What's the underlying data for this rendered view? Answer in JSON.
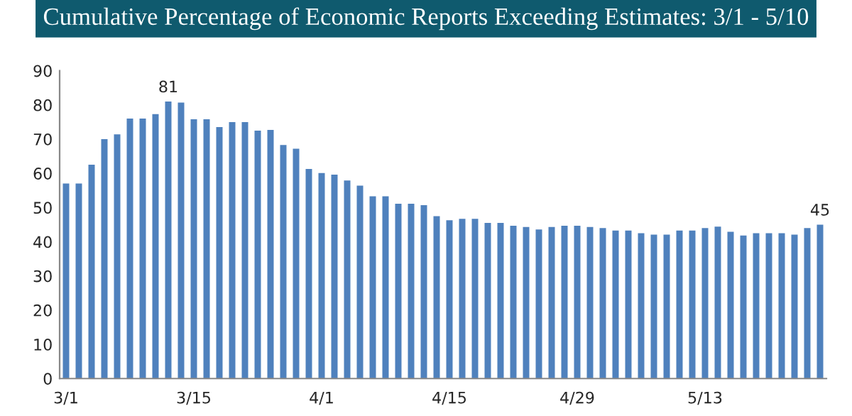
{
  "chart_data": {
    "type": "bar",
    "title": "Cumulative Percentage of Economic Reports Exceeding Estimates: 3/1 - 5/10",
    "categories": [
      "3/1",
      null,
      null,
      null,
      null,
      null,
      null,
      null,
      null,
      null,
      "3/15",
      null,
      null,
      null,
      null,
      null,
      null,
      null,
      null,
      null,
      "4/1",
      null,
      null,
      null,
      null,
      null,
      null,
      null,
      null,
      null,
      "4/15",
      null,
      null,
      null,
      null,
      null,
      null,
      null,
      null,
      null,
      "4/29",
      null,
      null,
      null,
      null,
      null,
      null,
      null,
      null,
      null,
      "5/13",
      null,
      null,
      null,
      null,
      null,
      null,
      null,
      null,
      null
    ],
    "values": [
      57,
      57,
      62.5,
      70,
      71.4,
      76,
      76,
      77.3,
      81,
      80.7,
      75.8,
      75.8,
      73.5,
      75,
      75,
      72.5,
      72.7,
      68.3,
      67.2,
      61.3,
      60.1,
      59.6,
      57.9,
      56.4,
      53.3,
      53.3,
      51.1,
      51.1,
      50.7,
      47.5,
      46.3,
      46.7,
      46.7,
      45.5,
      45.5,
      44.7,
      44.3,
      43.6,
      44.3,
      44.7,
      44.7,
      44.3,
      44.0,
      43.3,
      43.3,
      42.5,
      42.1,
      42.1,
      43.3,
      43.3,
      44.0,
      44.4,
      42.9,
      41.8,
      42.5,
      42.5,
      42.5,
      42.1,
      44.0,
      45
    ],
    "value_labels": [
      null,
      null,
      null,
      null,
      null,
      null,
      null,
      null,
      "81",
      null,
      null,
      null,
      null,
      null,
      null,
      null,
      null,
      null,
      null,
      null,
      null,
      null,
      null,
      null,
      null,
      null,
      null,
      null,
      null,
      null,
      null,
      null,
      null,
      null,
      null,
      null,
      null,
      null,
      null,
      null,
      null,
      null,
      null,
      null,
      null,
      null,
      null,
      null,
      null,
      null,
      null,
      null,
      null,
      null,
      null,
      null,
      null,
      null,
      null,
      "45"
    ],
    "color": "#4f81bd",
    "ylim": [
      0,
      90
    ],
    "yticks": [
      0,
      10,
      20,
      30,
      40,
      50,
      60,
      70,
      80,
      90
    ],
    "grid": false
  }
}
